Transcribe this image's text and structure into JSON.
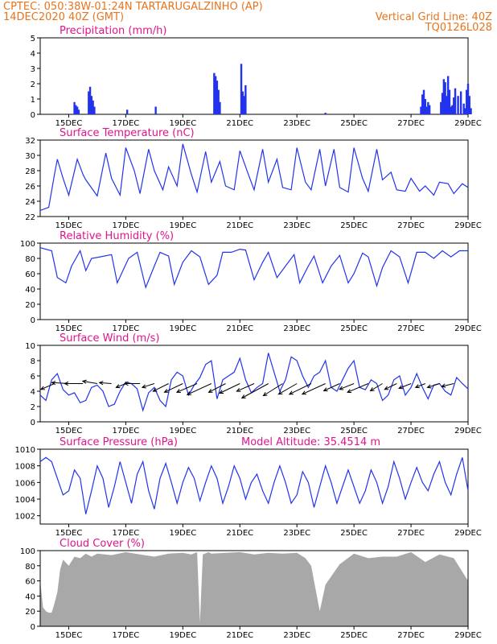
{
  "header": {
    "line1_left": "CPTEC:   050:38W-01:24N  TARTARUGALZINHO (AP)",
    "line2_left": "14DEC2020 40Z (GMT)",
    "line2_right": "Vertical Grid Line: 40Z",
    "line3_right": "TQ0126L028"
  },
  "colors": {
    "header": "#e8741c",
    "title": "#e0148c",
    "series": "#2233ee",
    "cloud": "#a8a8a8",
    "wind_arrow": "#000000"
  },
  "chart_data": [
    {
      "type": "bar",
      "title": "Precipitation (mm/h)",
      "x_tick_labels": [
        "15DEC",
        "17DEC",
        "19DEC",
        "21DEC",
        "23DEC",
        "25DEC",
        "27DEC",
        "29DEC"
      ],
      "ylim": [
        0,
        5
      ],
      "y_ticks": [
        0,
        1,
        2,
        3,
        4,
        5
      ],
      "x_unit": "day since 14DEC2020 00Z",
      "x": [
        1.2,
        1.25,
        1.3,
        1.35,
        1.7,
        1.75,
        1.8,
        1.85,
        1.9,
        3.05,
        4.05,
        6.1,
        6.15,
        6.2,
        6.25,
        6.3,
        7.05,
        7.1,
        7.15,
        7.2,
        10.0,
        13.35,
        13.4,
        13.45,
        13.5,
        13.55,
        13.6,
        13.65,
        14.05,
        14.1,
        14.15,
        14.2,
        14.25,
        14.3,
        14.35,
        14.4,
        14.45,
        14.5,
        14.55,
        14.65,
        14.75,
        14.85,
        14.9,
        14.95,
        15.0,
        15.05,
        15.1
      ],
      "values": [
        0.8,
        0.6,
        0.5,
        0.3,
        1.5,
        1.8,
        1.2,
        0.9,
        0.5,
        0.3,
        0.5,
        2.7,
        2.5,
        2.2,
        1.6,
        0.8,
        3.3,
        1.5,
        1.2,
        1.9,
        0.1,
        0.5,
        1.3,
        1.6,
        1.0,
        0.5,
        0.8,
        0.6,
        0.8,
        1.4,
        2.3,
        2.1,
        1.2,
        2.5,
        1.6,
        0.5,
        0.6,
        1.1,
        1.7,
        1.2,
        1.5,
        0.7,
        0.4,
        1.6,
        2.0,
        1.2,
        0.4
      ]
    },
    {
      "type": "line",
      "title": "Surface Temperature (nC)",
      "x_tick_labels": [
        "15DEC",
        "17DEC",
        "19DEC",
        "21DEC",
        "23DEC",
        "25DEC",
        "27DEC",
        "29DEC"
      ],
      "ylim": [
        22,
        32
      ],
      "y_ticks": [
        22,
        24,
        26,
        28,
        30,
        32
      ],
      "x": [
        0.0,
        0.3,
        0.5,
        0.6,
        0.8,
        1.0,
        1.3,
        1.5,
        1.6,
        2.0,
        2.3,
        2.5,
        2.8,
        3.0,
        3.3,
        3.5,
        3.8,
        4.0,
        4.3,
        4.5,
        4.8,
        5.0,
        5.3,
        5.5,
        5.8,
        6.0,
        6.3,
        6.5,
        6.8,
        7.0,
        7.3,
        7.5,
        7.8,
        8.0,
        8.3,
        8.5,
        8.8,
        9.0,
        9.3,
        9.5,
        9.8,
        10.0,
        10.3,
        10.5,
        10.8,
        11.0,
        11.3,
        11.5,
        11.8,
        12.0,
        12.3,
        12.5,
        12.8,
        13.0,
        13.3,
        13.5,
        13.8,
        14.0,
        14.3,
        14.5,
        14.8,
        15.0
      ],
      "values": [
        22.8,
        23.2,
        27.5,
        29.5,
        27.0,
        24.8,
        29.5,
        27.5,
        26.8,
        24.7,
        30.3,
        27.0,
        24.8,
        31.0,
        28.0,
        25.0,
        30.8,
        28.0,
        25.5,
        28.5,
        26.0,
        31.5,
        27.5,
        25.2,
        30.5,
        26.5,
        29.2,
        26.0,
        25.5,
        30.6,
        27.5,
        25.5,
        30.8,
        26.5,
        29.5,
        25.8,
        25.5,
        31.0,
        26.5,
        25.5,
        30.8,
        26.0,
        30.8,
        25.8,
        25.2,
        31.0,
        27.0,
        25.3,
        30.8,
        26.8,
        27.8,
        25.5,
        25.3,
        27.0,
        25.3,
        26.0,
        24.8,
        26.5,
        26.3,
        25.0,
        26.3,
        25.8
      ]
    },
    {
      "type": "line",
      "title": "Relative Humidity (%)",
      "x_tick_labels": [
        "15DEC",
        "17DEC",
        "19DEC",
        "21DEC",
        "23DEC",
        "25DEC",
        "27DEC",
        "29DEC"
      ],
      "ylim": [
        0,
        100
      ],
      "y_ticks": [
        0,
        20,
        40,
        60,
        80,
        100
      ],
      "x": [
        0.0,
        0.4,
        0.6,
        0.9,
        1.1,
        1.4,
        1.6,
        1.8,
        2.1,
        2.5,
        2.7,
        3.1,
        3.4,
        3.7,
        4.0,
        4.2,
        4.5,
        4.7,
        5.0,
        5.3,
        5.6,
        5.9,
        6.2,
        6.4,
        6.7,
        7.0,
        7.2,
        7.5,
        7.8,
        8.0,
        8.3,
        8.6,
        8.9,
        9.1,
        9.4,
        9.6,
        9.9,
        10.2,
        10.5,
        10.8,
        11.0,
        11.3,
        11.5,
        11.8,
        12.0,
        12.3,
        12.6,
        12.9,
        13.2,
        13.5,
        13.8,
        14.1,
        14.4,
        14.7,
        15.0
      ],
      "values": [
        94,
        90,
        55,
        48,
        70,
        90,
        64,
        80,
        82,
        85,
        48,
        80,
        88,
        42,
        70,
        88,
        83,
        46,
        75,
        90,
        82,
        46,
        58,
        88,
        88,
        92,
        91,
        52,
        75,
        88,
        55,
        70,
        85,
        48,
        70,
        83,
        48,
        70,
        84,
        48,
        60,
        87,
        82,
        44,
        68,
        90,
        82,
        48,
        88,
        88,
        80,
        90,
        82,
        90,
        90
      ]
    },
    {
      "type": "line",
      "title": "Surface Wind (m/s)",
      "x_tick_labels": [
        "15DEC",
        "17DEC",
        "19DEC",
        "21DEC",
        "23DEC",
        "25DEC",
        "27DEC",
        "29DEC"
      ],
      "ylim": [
        0,
        10
      ],
      "y_ticks": [
        0,
        2,
        4,
        6,
        8,
        10
      ],
      "x": [
        0.0,
        0.2,
        0.4,
        0.6,
        0.8,
        1.0,
        1.2,
        1.4,
        1.6,
        1.8,
        2.0,
        2.2,
        2.4,
        2.6,
        2.8,
        3.0,
        3.2,
        3.4,
        3.6,
        3.8,
        4.0,
        4.2,
        4.4,
        4.6,
        4.8,
        5.0,
        5.2,
        5.4,
        5.6,
        5.8,
        6.0,
        6.2,
        6.4,
        6.6,
        6.8,
        7.0,
        7.2,
        7.4,
        7.6,
        7.8,
        8.0,
        8.2,
        8.4,
        8.6,
        8.8,
        9.0,
        9.2,
        9.4,
        9.6,
        9.8,
        10.0,
        10.2,
        10.4,
        10.6,
        10.8,
        11.0,
        11.2,
        11.4,
        11.6,
        11.8,
        12.0,
        12.2,
        12.4,
        12.6,
        12.8,
        13.0,
        13.2,
        13.4,
        13.6,
        13.8,
        14.0,
        14.2,
        14.4,
        14.6,
        14.8,
        15.0
      ],
      "values": [
        3.5,
        2.8,
        5.5,
        6.3,
        4.2,
        3.5,
        3.8,
        2.5,
        2.8,
        4.5,
        4.8,
        4.0,
        2.0,
        2.3,
        4.0,
        5.2,
        5.0,
        4.3,
        1.5,
        3.8,
        4.5,
        2.8,
        2.0,
        5.5,
        6.5,
        6.0,
        3.5,
        4.8,
        5.8,
        7.5,
        8.0,
        3.0,
        5.5,
        6.0,
        6.5,
        8.3,
        5.5,
        3.8,
        4.5,
        5.0,
        9.0,
        6.5,
        4.0,
        5.5,
        8.5,
        8.0,
        6.0,
        4.5,
        6.0,
        6.5,
        8.0,
        4.5,
        4.0,
        5.5,
        7.0,
        8.0,
        4.5,
        4.2,
        5.5,
        5.0,
        2.8,
        3.5,
        5.5,
        6.0,
        3.5,
        4.5,
        6.3,
        4.5,
        3.0,
        4.8,
        5.0,
        4.0,
        3.5,
        5.8,
        5.0,
        4.3
      ]
    },
    {
      "type": "line",
      "title": "Surface Pressure (hPa)",
      "annotation": "Model Altitude: 35.4514 m",
      "x_tick_labels": [
        "15DEC",
        "17DEC",
        "19DEC",
        "21DEC",
        "23DEC",
        "25DEC",
        "27DEC",
        "29DEC"
      ],
      "ylim": [
        1001,
        1010
      ],
      "y_ticks": [
        1002,
        1004,
        1006,
        1008,
        1010
      ],
      "x": [
        0.0,
        0.2,
        0.4,
        0.6,
        0.8,
        1.0,
        1.2,
        1.4,
        1.6,
        1.8,
        2.0,
        2.2,
        2.4,
        2.6,
        2.8,
        3.0,
        3.2,
        3.4,
        3.6,
        3.8,
        4.0,
        4.2,
        4.4,
        4.6,
        4.8,
        5.0,
        5.2,
        5.4,
        5.6,
        5.8,
        6.0,
        6.2,
        6.4,
        6.6,
        6.8,
        7.0,
        7.2,
        7.4,
        7.6,
        7.8,
        8.0,
        8.2,
        8.4,
        8.6,
        8.8,
        9.0,
        9.2,
        9.4,
        9.6,
        9.8,
        10.0,
        10.2,
        10.4,
        10.6,
        10.8,
        11.0,
        11.2,
        11.4,
        11.6,
        11.8,
        12.0,
        12.2,
        12.4,
        12.6,
        12.8,
        13.0,
        13.2,
        13.4,
        13.6,
        13.8,
        14.0,
        14.2,
        14.4,
        14.6,
        14.8,
        15.0
      ],
      "values": [
        1008.5,
        1009.0,
        1008.5,
        1006.5,
        1004.5,
        1005.0,
        1007.5,
        1006.5,
        1002.2,
        1005.0,
        1008.0,
        1006.5,
        1003.0,
        1005.5,
        1008.5,
        1006.0,
        1003.5,
        1007.0,
        1008.5,
        1005.0,
        1002.8,
        1006.5,
        1008.3,
        1006.0,
        1003.5,
        1006.0,
        1007.8,
        1006.5,
        1003.8,
        1006.0,
        1008.0,
        1006.5,
        1003.5,
        1005.5,
        1008.0,
        1006.5,
        1004.0,
        1006.0,
        1007.0,
        1005.0,
        1003.5,
        1006.0,
        1008.0,
        1006.0,
        1003.5,
        1004.5,
        1007.3,
        1006.0,
        1003.0,
        1005.5,
        1008.0,
        1006.0,
        1003.5,
        1005.5,
        1007.5,
        1005.5,
        1003.5,
        1005.0,
        1007.5,
        1006.0,
        1003.5,
        1005.5,
        1008.5,
        1006.5,
        1004.0,
        1006.0,
        1007.8,
        1006.0,
        1005.0,
        1007.0,
        1008.5,
        1006.0,
        1004.5,
        1007.0,
        1009.0,
        1005.0
      ]
    },
    {
      "type": "area",
      "title": "Cloud Cover (%)",
      "x_tick_labels": [
        "15DEC",
        "17DEC",
        "19DEC",
        "21DEC",
        "23DEC",
        "25DEC",
        "27DEC",
        "29DEC"
      ],
      "ylim": [
        0,
        100
      ],
      "y_ticks": [
        0,
        20,
        40,
        60,
        80,
        100
      ],
      "x": [
        0.0,
        0.1,
        0.2,
        0.3,
        0.4,
        0.5,
        0.6,
        0.7,
        0.8,
        1.0,
        1.2,
        1.4,
        1.6,
        1.8,
        2.0,
        2.5,
        3.0,
        3.5,
        4.0,
        4.5,
        5.0,
        5.3,
        5.5,
        5.6,
        5.7,
        5.9,
        6.0,
        6.5,
        7.0,
        7.5,
        8.0,
        8.5,
        9.0,
        9.3,
        9.5,
        9.8,
        10.0,
        10.5,
        11.0,
        11.5,
        12.0,
        12.5,
        13.0,
        13.5,
        14.0,
        14.5,
        15.0
      ],
      "values": [
        60,
        25,
        20,
        18,
        18,
        30,
        45,
        75,
        88,
        80,
        92,
        90,
        96,
        92,
        96,
        94,
        98,
        95,
        92,
        96,
        97,
        95,
        98,
        5,
        95,
        98,
        96,
        97,
        98,
        95,
        97,
        96,
        97,
        90,
        80,
        20,
        55,
        82,
        96,
        90,
        92,
        92,
        98,
        85,
        95,
        90,
        60
      ]
    }
  ],
  "wind_vectors": [
    {
      "x": 0.5,
      "u": -2.8,
      "v": -1.2
    },
    {
      "x": 1.0,
      "u": -3.5,
      "v": 0.2
    },
    {
      "x": 1.5,
      "u": -3.8,
      "v": 0.0
    },
    {
      "x": 2.0,
      "u": -3.0,
      "v": 0.5
    },
    {
      "x": 2.5,
      "u": -2.5,
      "v": 0.2
    },
    {
      "x": 3.0,
      "u": -2.0,
      "v": -0.8
    },
    {
      "x": 3.5,
      "u": -3.2,
      "v": 0.0
    },
    {
      "x": 4.0,
      "u": -2.5,
      "v": -0.8
    },
    {
      "x": 4.5,
      "u": -3.2,
      "v": -1.6
    },
    {
      "x": 5.0,
      "u": -3.8,
      "v": -1.8
    },
    {
      "x": 5.5,
      "u": -4.2,
      "v": -1.8
    },
    {
      "x": 6.0,
      "u": -5.0,
      "v": -2.3
    },
    {
      "x": 6.5,
      "u": -3.5,
      "v": -1.8
    },
    {
      "x": 7.0,
      "u": -4.2,
      "v": -2.0
    },
    {
      "x": 7.5,
      "u": -3.6,
      "v": -1.6
    },
    {
      "x": 8.0,
      "u": -5.5,
      "v": -3.0
    },
    {
      "x": 8.5,
      "u": -4.0,
      "v": -2.5
    },
    {
      "x": 9.0,
      "u": -3.8,
      "v": -2.2
    },
    {
      "x": 9.5,
      "u": -4.5,
      "v": -2.2
    },
    {
      "x": 10.0,
      "u": -4.8,
      "v": -2.2
    },
    {
      "x": 10.5,
      "u": -3.3,
      "v": -1.5
    },
    {
      "x": 11.0,
      "u": -3.0,
      "v": -1.2
    },
    {
      "x": 11.5,
      "u": -4.3,
      "v": -1.8
    },
    {
      "x": 12.0,
      "u": -2.5,
      "v": -1.5
    },
    {
      "x": 12.5,
      "u": -2.5,
      "v": -1.2
    },
    {
      "x": 13.0,
      "u": -2.5,
      "v": -1.0
    },
    {
      "x": 13.5,
      "u": -2.0,
      "v": -0.8
    },
    {
      "x": 14.0,
      "u": -2.5,
      "v": -0.8
    },
    {
      "x": 14.5,
      "u": -2.5,
      "v": -0.6
    }
  ]
}
